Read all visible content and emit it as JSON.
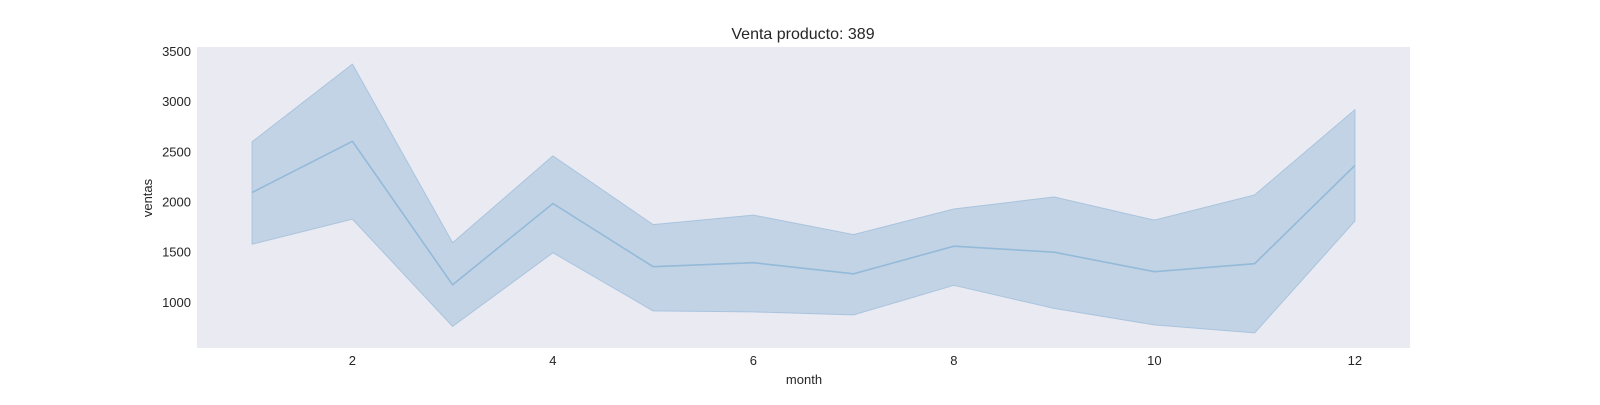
{
  "chart_data": {
    "type": "area",
    "title": "Venta producto: 389",
    "xlabel": "month",
    "ylabel": "ventas",
    "xlim": [
      0.45,
      12.55
    ],
    "ylim": [
      540,
      3540
    ],
    "xticks": [
      2,
      4,
      6,
      8,
      10,
      12
    ],
    "yticks": [
      1000,
      1500,
      2000,
      2500,
      3000,
      3500
    ],
    "grid": false,
    "colors": {
      "plot_background": "#eaeaf2",
      "line": "#94bad9",
      "band_fill": "#c2d3e5",
      "band_edge": "#a9c4de"
    },
    "series": [
      {
        "x": [
          1,
          2,
          3,
          4,
          5,
          6,
          7,
          8,
          9,
          10,
          11,
          12
        ],
        "values": [
          2090,
          2600,
          1170,
          1980,
          1350,
          1390,
          1280,
          1555,
          1495,
          1300,
          1380,
          2360
        ],
        "lower": [
          1575,
          1825,
          755,
          1490,
          910,
          900,
          870,
          1165,
          935,
          770,
          690,
          1805
        ],
        "upper": [
          2595,
          3370,
          1590,
          2455,
          1770,
          1865,
          1670,
          1925,
          2045,
          1815,
          2065,
          2915
        ]
      }
    ]
  }
}
